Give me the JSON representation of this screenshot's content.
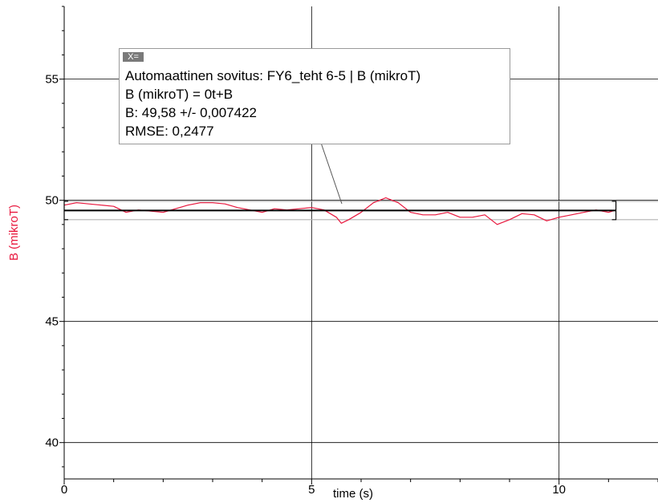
{
  "chart_data": {
    "type": "line",
    "xlabel": "time (s)",
    "ylabel": "B (mikroT)",
    "xlim": [
      0,
      12
    ],
    "ylim": [
      38.5,
      58
    ],
    "xticks": [
      0,
      5,
      10
    ],
    "yticks": [
      40,
      45,
      50,
      55
    ],
    "x_minor_step": 1,
    "grid": true,
    "colors": {
      "data": "#e8173d",
      "fit": "#000000",
      "ylabel": "#e8173d",
      "grid": "#000000",
      "band": "#b3b3b3"
    },
    "series": [
      {
        "x": [
          0,
          0.25,
          0.5,
          0.75,
          1,
          1.25,
          1.5,
          1.75,
          2,
          2.25,
          2.5,
          2.75,
          3,
          3.25,
          3.5,
          3.75,
          4,
          4.25,
          4.5,
          4.75,
          5,
          5.25,
          5.5,
          5.6,
          5.75,
          6,
          6.25,
          6.5,
          6.75,
          7,
          7.25,
          7.5,
          7.75,
          8,
          8.25,
          8.5,
          8.75,
          9,
          9.25,
          9.5,
          9.75,
          10,
          10.25,
          10.5,
          10.75,
          11,
          11.15
        ],
        "y": [
          49.8,
          49.9,
          49.85,
          49.8,
          49.75,
          49.5,
          49.6,
          49.55,
          49.5,
          49.65,
          49.8,
          49.9,
          49.9,
          49.85,
          49.7,
          49.6,
          49.5,
          49.65,
          49.6,
          49.65,
          49.7,
          49.6,
          49.3,
          49.05,
          49.2,
          49.5,
          49.9,
          50.1,
          49.9,
          49.5,
          49.4,
          49.4,
          49.5,
          49.3,
          49.3,
          49.4,
          49.0,
          49.2,
          49.45,
          49.4,
          49.15,
          49.3,
          49.4,
          49.5,
          49.6,
          49.5,
          49.6
        ]
      }
    ],
    "fit": {
      "B": 49.58,
      "x_range": [
        0,
        11.15
      ],
      "band": [
        49.2,
        49.96
      ]
    },
    "annotation": {
      "close_label": "X=",
      "lines": [
        "Automaattinen sovitus: FY6_teht 6-5 | B (mikroT)",
        "B (mikroT) = 0t+B",
        "B: 49,58 +/- 0,007422",
        "RMSE: 0,2477"
      ]
    }
  }
}
